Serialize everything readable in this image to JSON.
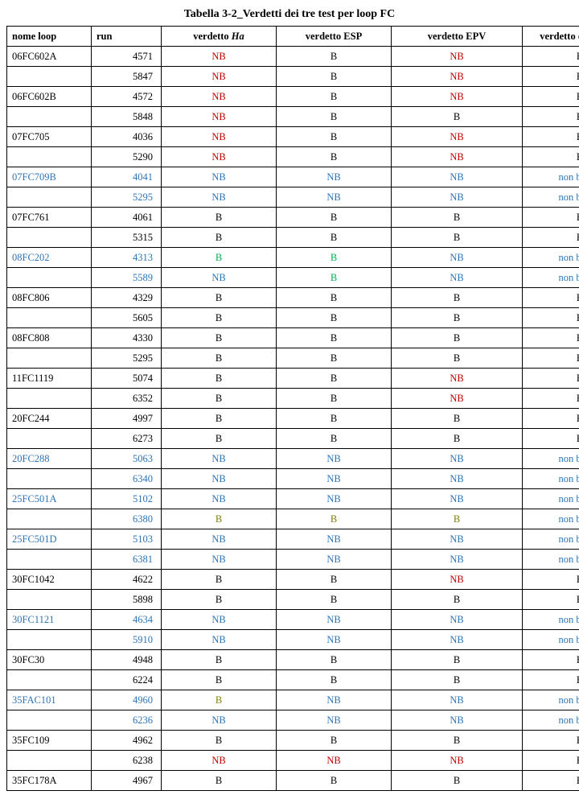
{
  "title": "Tabella 3-2_Verdetti dei tre test per loop FC",
  "colors": {
    "black": "#000000",
    "red": "#c00000",
    "blue": "#2e74b5",
    "olive": "#808000",
    "green": "#00b050"
  },
  "columns": [
    {
      "key": "name",
      "label": "nome loop"
    },
    {
      "key": "run",
      "label": "run"
    },
    {
      "key": "ha",
      "label": "verdetto ",
      "italic_suffix": "Ha"
    },
    {
      "key": "esp",
      "label": "verdetto ESP"
    },
    {
      "key": "epv",
      "label": "verdetto EPV"
    },
    {
      "key": "op",
      "label": "verdetto operatore"
    }
  ],
  "rows": [
    {
      "name": {
        "t": "06FC602A",
        "c": "black"
      },
      "run": {
        "t": "4571",
        "c": "black"
      },
      "ha": {
        "t": "NB",
        "c": "red"
      },
      "esp": {
        "t": "B",
        "c": "black"
      },
      "epv": {
        "t": "NB",
        "c": "red"
      },
      "op": {
        "t": "B",
        "c": "black"
      }
    },
    {
      "name": {
        "t": "",
        "c": "black"
      },
      "run": {
        "t": "5847",
        "c": "black"
      },
      "ha": {
        "t": "NB",
        "c": "red"
      },
      "esp": {
        "t": "B",
        "c": "black"
      },
      "epv": {
        "t": "NB",
        "c": "red"
      },
      "op": {
        "t": "B",
        "c": "black"
      }
    },
    {
      "name": {
        "t": "06FC602B",
        "c": "black"
      },
      "run": {
        "t": "4572",
        "c": "black"
      },
      "ha": {
        "t": "NB",
        "c": "red"
      },
      "esp": {
        "t": "B",
        "c": "black"
      },
      "epv": {
        "t": "NB",
        "c": "red"
      },
      "op": {
        "t": "B",
        "c": "black"
      }
    },
    {
      "name": {
        "t": "",
        "c": "black"
      },
      "run": {
        "t": "5848",
        "c": "black"
      },
      "ha": {
        "t": "NB",
        "c": "red"
      },
      "esp": {
        "t": "B",
        "c": "black"
      },
      "epv": {
        "t": "B",
        "c": "black"
      },
      "op": {
        "t": "B",
        "c": "black"
      }
    },
    {
      "name": {
        "t": "07FC705",
        "c": "black"
      },
      "run": {
        "t": "4036",
        "c": "black"
      },
      "ha": {
        "t": "NB",
        "c": "red"
      },
      "esp": {
        "t": "B",
        "c": "black"
      },
      "epv": {
        "t": "NB",
        "c": "red"
      },
      "op": {
        "t": "B",
        "c": "black"
      }
    },
    {
      "name": {
        "t": "",
        "c": "black"
      },
      "run": {
        "t": "5290",
        "c": "black"
      },
      "ha": {
        "t": "NB",
        "c": "red"
      },
      "esp": {
        "t": "B",
        "c": "black"
      },
      "epv": {
        "t": "NB",
        "c": "red"
      },
      "op": {
        "t": "B",
        "c": "black"
      }
    },
    {
      "name": {
        "t": "07FC709B",
        "c": "blue"
      },
      "run": {
        "t": "4041",
        "c": "blue"
      },
      "ha": {
        "t": "NB",
        "c": "blue"
      },
      "esp": {
        "t": "NB",
        "c": "blue"
      },
      "epv": {
        "t": "NB",
        "c": "blue"
      },
      "op": {
        "t": "non buono",
        "c": "blue"
      }
    },
    {
      "name": {
        "t": "",
        "c": "blue"
      },
      "run": {
        "t": "5295",
        "c": "blue"
      },
      "ha": {
        "t": "NB",
        "c": "blue"
      },
      "esp": {
        "t": "NB",
        "c": "blue"
      },
      "epv": {
        "t": "NB",
        "c": "blue"
      },
      "op": {
        "t": "non buono",
        "c": "blue"
      }
    },
    {
      "name": {
        "t": "07FC761",
        "c": "black"
      },
      "run": {
        "t": "4061",
        "c": "black"
      },
      "ha": {
        "t": "B",
        "c": "black"
      },
      "esp": {
        "t": "B",
        "c": "black"
      },
      "epv": {
        "t": "B",
        "c": "black"
      },
      "op": {
        "t": "B",
        "c": "black"
      }
    },
    {
      "name": {
        "t": "",
        "c": "black"
      },
      "run": {
        "t": "5315",
        "c": "black"
      },
      "ha": {
        "t": "B",
        "c": "black"
      },
      "esp": {
        "t": "B",
        "c": "black"
      },
      "epv": {
        "t": "B",
        "c": "black"
      },
      "op": {
        "t": "B",
        "c": "black"
      }
    },
    {
      "name": {
        "t": "08FC202",
        "c": "blue"
      },
      "run": {
        "t": "4313",
        "c": "blue"
      },
      "ha": {
        "t": "B",
        "c": "green"
      },
      "esp": {
        "t": "B",
        "c": "green"
      },
      "epv": {
        "t": "NB",
        "c": "blue"
      },
      "op": {
        "t": "non buono",
        "c": "blue"
      }
    },
    {
      "name": {
        "t": "",
        "c": "blue"
      },
      "run": {
        "t": "5589",
        "c": "blue"
      },
      "ha": {
        "t": "NB",
        "c": "blue"
      },
      "esp": {
        "t": "B",
        "c": "green"
      },
      "epv": {
        "t": "NB",
        "c": "blue"
      },
      "op": {
        "t": "non buono",
        "c": "blue"
      }
    },
    {
      "name": {
        "t": "08FC806",
        "c": "black"
      },
      "run": {
        "t": "4329",
        "c": "black"
      },
      "ha": {
        "t": "B",
        "c": "black"
      },
      "esp": {
        "t": "B",
        "c": "black"
      },
      "epv": {
        "t": "B",
        "c": "black"
      },
      "op": {
        "t": "B",
        "c": "black"
      }
    },
    {
      "name": {
        "t": "",
        "c": "black"
      },
      "run": {
        "t": "5605",
        "c": "black"
      },
      "ha": {
        "t": "B",
        "c": "black"
      },
      "esp": {
        "t": "B",
        "c": "black"
      },
      "epv": {
        "t": "B",
        "c": "black"
      },
      "op": {
        "t": "B",
        "c": "black"
      }
    },
    {
      "name": {
        "t": "08FC808",
        "c": "black"
      },
      "run": {
        "t": "4330",
        "c": "black"
      },
      "ha": {
        "t": "B",
        "c": "black"
      },
      "esp": {
        "t": "B",
        "c": "black"
      },
      "epv": {
        "t": "B",
        "c": "black"
      },
      "op": {
        "t": "B",
        "c": "black"
      }
    },
    {
      "name": {
        "t": "",
        "c": "black"
      },
      "run": {
        "t": "5295",
        "c": "black"
      },
      "ha": {
        "t": "B",
        "c": "black"
      },
      "esp": {
        "t": "B",
        "c": "black"
      },
      "epv": {
        "t": "B",
        "c": "black"
      },
      "op": {
        "t": "B",
        "c": "black"
      }
    },
    {
      "name": {
        "t": "11FC1119",
        "c": "black"
      },
      "run": {
        "t": "5074",
        "c": "black"
      },
      "ha": {
        "t": "B",
        "c": "black"
      },
      "esp": {
        "t": "B",
        "c": "black"
      },
      "epv": {
        "t": "NB",
        "c": "red"
      },
      "op": {
        "t": "B",
        "c": "black"
      }
    },
    {
      "name": {
        "t": "",
        "c": "black"
      },
      "run": {
        "t": "6352",
        "c": "black"
      },
      "ha": {
        "t": "B",
        "c": "black"
      },
      "esp": {
        "t": "B",
        "c": "black"
      },
      "epv": {
        "t": "NB",
        "c": "red"
      },
      "op": {
        "t": "B",
        "c": "black"
      }
    },
    {
      "name": {
        "t": "20FC244",
        "c": "black"
      },
      "run": {
        "t": "4997",
        "c": "black"
      },
      "ha": {
        "t": "B",
        "c": "black"
      },
      "esp": {
        "t": "B",
        "c": "black"
      },
      "epv": {
        "t": "B",
        "c": "black"
      },
      "op": {
        "t": "B",
        "c": "black"
      }
    },
    {
      "name": {
        "t": "",
        "c": "black"
      },
      "run": {
        "t": "6273",
        "c": "black"
      },
      "ha": {
        "t": "B",
        "c": "black"
      },
      "esp": {
        "t": "B",
        "c": "black"
      },
      "epv": {
        "t": "B",
        "c": "black"
      },
      "op": {
        "t": "B",
        "c": "black"
      }
    },
    {
      "name": {
        "t": "20FC288",
        "c": "blue"
      },
      "run": {
        "t": "5063",
        "c": "blue"
      },
      "ha": {
        "t": "NB",
        "c": "blue"
      },
      "esp": {
        "t": "NB",
        "c": "blue"
      },
      "epv": {
        "t": "NB",
        "c": "blue"
      },
      "op": {
        "t": "non buono",
        "c": "blue"
      }
    },
    {
      "name": {
        "t": "",
        "c": "blue"
      },
      "run": {
        "t": "6340",
        "c": "blue"
      },
      "ha": {
        "t": "NB",
        "c": "blue"
      },
      "esp": {
        "t": "NB",
        "c": "blue"
      },
      "epv": {
        "t": "NB",
        "c": "blue"
      },
      "op": {
        "t": "non buono",
        "c": "blue"
      }
    },
    {
      "name": {
        "t": "25FC501A",
        "c": "blue"
      },
      "run": {
        "t": "5102",
        "c": "blue"
      },
      "ha": {
        "t": "NB",
        "c": "blue"
      },
      "esp": {
        "t": "NB",
        "c": "blue"
      },
      "epv": {
        "t": "NB",
        "c": "blue"
      },
      "op": {
        "t": "non buono",
        "c": "blue"
      }
    },
    {
      "name": {
        "t": "",
        "c": "blue"
      },
      "run": {
        "t": "6380",
        "c": "blue"
      },
      "ha": {
        "t": "B",
        "c": "olive"
      },
      "esp": {
        "t": "B",
        "c": "olive"
      },
      "epv": {
        "t": "B",
        "c": "olive"
      },
      "op": {
        "t": "non buono",
        "c": "blue"
      }
    },
    {
      "name": {
        "t": "25FC501D",
        "c": "blue"
      },
      "run": {
        "t": "5103",
        "c": "blue"
      },
      "ha": {
        "t": "NB",
        "c": "blue"
      },
      "esp": {
        "t": "NB",
        "c": "blue"
      },
      "epv": {
        "t": "NB",
        "c": "blue"
      },
      "op": {
        "t": "non buono",
        "c": "blue"
      }
    },
    {
      "name": {
        "t": "",
        "c": "blue"
      },
      "run": {
        "t": "6381",
        "c": "blue"
      },
      "ha": {
        "t": "NB",
        "c": "blue"
      },
      "esp": {
        "t": "NB",
        "c": "blue"
      },
      "epv": {
        "t": "NB",
        "c": "blue"
      },
      "op": {
        "t": "non buono",
        "c": "blue"
      }
    },
    {
      "name": {
        "t": "30FC1042",
        "c": "black"
      },
      "run": {
        "t": "4622",
        "c": "black"
      },
      "ha": {
        "t": "B",
        "c": "black"
      },
      "esp": {
        "t": "B",
        "c": "black"
      },
      "epv": {
        "t": "NB",
        "c": "red"
      },
      "op": {
        "t": "B",
        "c": "black"
      }
    },
    {
      "name": {
        "t": "",
        "c": "black"
      },
      "run": {
        "t": "5898",
        "c": "black"
      },
      "ha": {
        "t": "B",
        "c": "black"
      },
      "esp": {
        "t": "B",
        "c": "black"
      },
      "epv": {
        "t": "B",
        "c": "black"
      },
      "op": {
        "t": "B",
        "c": "black"
      }
    },
    {
      "name": {
        "t": "30FC1121",
        "c": "blue"
      },
      "run": {
        "t": "4634",
        "c": "blue"
      },
      "ha": {
        "t": "NB",
        "c": "blue"
      },
      "esp": {
        "t": "NB",
        "c": "blue"
      },
      "epv": {
        "t": "NB",
        "c": "blue"
      },
      "op": {
        "t": "non buono",
        "c": "blue"
      }
    },
    {
      "name": {
        "t": "",
        "c": "blue"
      },
      "run": {
        "t": "5910",
        "c": "blue"
      },
      "ha": {
        "t": "NB",
        "c": "blue"
      },
      "esp": {
        "t": "NB",
        "c": "blue"
      },
      "epv": {
        "t": "NB",
        "c": "blue"
      },
      "op": {
        "t": "non buono",
        "c": "blue"
      }
    },
    {
      "name": {
        "t": "30FC30",
        "c": "black"
      },
      "run": {
        "t": "4948",
        "c": "black"
      },
      "ha": {
        "t": "B",
        "c": "black"
      },
      "esp": {
        "t": "B",
        "c": "black"
      },
      "epv": {
        "t": "B",
        "c": "black"
      },
      "op": {
        "t": "B",
        "c": "black"
      }
    },
    {
      "name": {
        "t": "",
        "c": "black"
      },
      "run": {
        "t": "6224",
        "c": "black"
      },
      "ha": {
        "t": "B",
        "c": "black"
      },
      "esp": {
        "t": "B",
        "c": "black"
      },
      "epv": {
        "t": "B",
        "c": "black"
      },
      "op": {
        "t": "B",
        "c": "black"
      }
    },
    {
      "name": {
        "t": "35FAC101",
        "c": "blue"
      },
      "run": {
        "t": "4960",
        "c": "blue"
      },
      "ha": {
        "t": "B",
        "c": "olive"
      },
      "esp": {
        "t": "NB",
        "c": "blue"
      },
      "epv": {
        "t": "NB",
        "c": "blue"
      },
      "op": {
        "t": "non buono",
        "c": "blue"
      }
    },
    {
      "name": {
        "t": "",
        "c": "blue"
      },
      "run": {
        "t": "6236",
        "c": "blue"
      },
      "ha": {
        "t": "NB",
        "c": "blue"
      },
      "esp": {
        "t": "NB",
        "c": "blue"
      },
      "epv": {
        "t": "NB",
        "c": "blue"
      },
      "op": {
        "t": "non buono",
        "c": "blue"
      }
    },
    {
      "name": {
        "t": "35FC109",
        "c": "black"
      },
      "run": {
        "t": "4962",
        "c": "black"
      },
      "ha": {
        "t": "B",
        "c": "black"
      },
      "esp": {
        "t": "B",
        "c": "black"
      },
      "epv": {
        "t": "B",
        "c": "black"
      },
      "op": {
        "t": "B",
        "c": "black"
      }
    },
    {
      "name": {
        "t": "",
        "c": "black"
      },
      "run": {
        "t": "6238",
        "c": "black"
      },
      "ha": {
        "t": "NB",
        "c": "red"
      },
      "esp": {
        "t": "NB",
        "c": "red"
      },
      "epv": {
        "t": "NB",
        "c": "red"
      },
      "op": {
        "t": "B",
        "c": "black"
      }
    },
    {
      "name": {
        "t": "35FC178A",
        "c": "black"
      },
      "run": {
        "t": "4967",
        "c": "black"
      },
      "ha": {
        "t": "B",
        "c": "black"
      },
      "esp": {
        "t": "B",
        "c": "black"
      },
      "epv": {
        "t": "B",
        "c": "black"
      },
      "op": {
        "t": "B",
        "c": "black"
      }
    }
  ]
}
